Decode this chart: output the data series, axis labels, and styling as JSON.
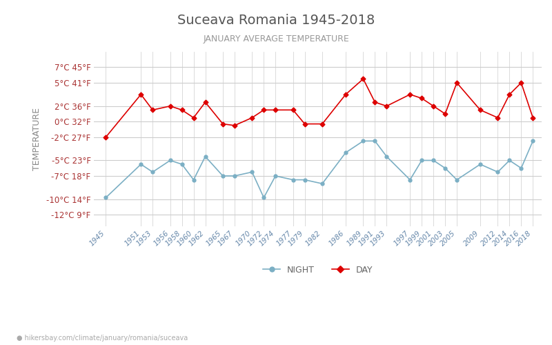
{
  "title": "Suceava Romania 1945-2018",
  "subtitle": "JANUARY AVERAGE TEMPERATURE",
  "ylabel": "TEMPERATURE",
  "watermark": "hikersbay.com/climate/january/romania/suceava",
  "title_color": "#555555",
  "subtitle_color": "#999999",
  "ylabel_color": "#888888",
  "background_color": "#ffffff",
  "grid_color": "#cccccc",
  "day_color": "#dd0000",
  "night_color": "#7bafc4",
  "years": [
    1945,
    1951,
    1953,
    1956,
    1958,
    1960,
    1962,
    1965,
    1967,
    1970,
    1972,
    1974,
    1977,
    1979,
    1982,
    1986,
    1989,
    1991,
    1993,
    1997,
    1999,
    2001,
    2003,
    2005,
    2009,
    2012,
    2014,
    2016,
    2018
  ],
  "day_temps": [
    -2.0,
    3.5,
    1.5,
    2.0,
    1.5,
    0.5,
    2.5,
    -0.3,
    -0.5,
    0.5,
    1.5,
    1.5,
    1.5,
    -0.3,
    -0.3,
    3.5,
    5.5,
    2.5,
    2.0,
    3.5,
    3.0,
    2.0,
    1.0,
    5.0,
    1.5,
    0.5,
    3.5,
    5.0,
    0.5
  ],
  "night_temps": [
    -9.8,
    -5.5,
    -6.5,
    -5.0,
    -5.5,
    -7.5,
    -4.5,
    -7.0,
    -7.0,
    -6.5,
    -9.8,
    -7.0,
    -7.5,
    -7.5,
    -8.0,
    -4.0,
    -2.5,
    -2.5,
    -4.5,
    -7.5,
    -5.0,
    -5.0,
    -6.0,
    -7.5,
    -5.5,
    -6.5,
    -5.0,
    -6.0,
    -2.5
  ],
  "yticks_c": [
    7,
    5,
    2,
    0,
    -2,
    -5,
    -7,
    -10,
    -12
  ],
  "yticks_f": [
    45,
    41,
    36,
    32,
    27,
    23,
    18,
    14,
    9
  ],
  "ylim": [
    -13.5,
    9.0
  ],
  "xlim": [
    1943,
    2019.5
  ],
  "xtick_years": [
    1945,
    1951,
    1953,
    1956,
    1958,
    1960,
    1962,
    1965,
    1967,
    1970,
    1972,
    1974,
    1977,
    1979,
    1982,
    1986,
    1989,
    1991,
    1993,
    1997,
    1999,
    2001,
    2003,
    2005,
    2009,
    2012,
    2014,
    2016,
    2018
  ],
  "legend_night": "NIGHT",
  "legend_day": "DAY"
}
